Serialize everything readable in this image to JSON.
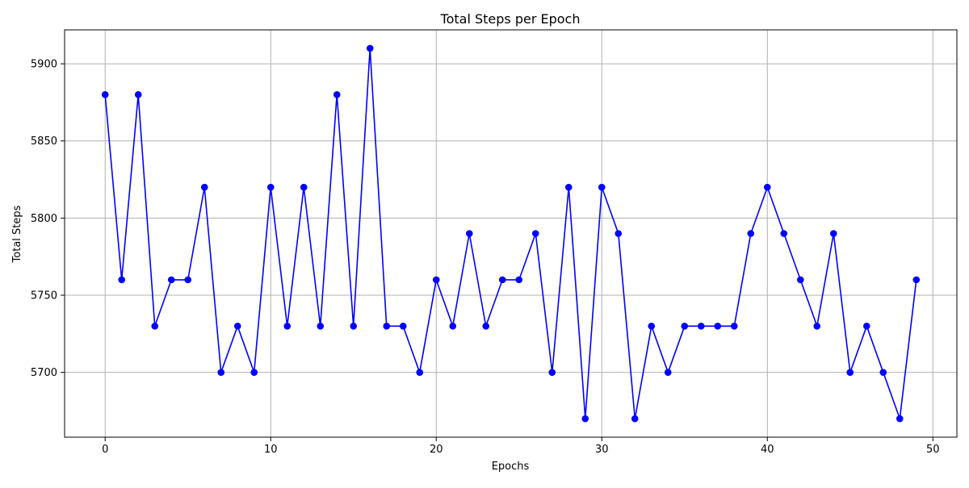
{
  "chart_data": {
    "type": "line",
    "title": "Total Steps per Epoch",
    "xlabel": "Epochs",
    "ylabel": "Total Steps",
    "xlim": [
      -2.45,
      51.45
    ],
    "ylim": [
      5658,
      5922
    ],
    "xticks": [
      0,
      10,
      20,
      30,
      40,
      50
    ],
    "yticks": [
      5700,
      5750,
      5800,
      5850,
      5900
    ],
    "grid": true,
    "legend": "none",
    "series": [
      {
        "color": "#0000ff",
        "marker": "circle",
        "x": [
          0,
          1,
          2,
          3,
          4,
          5,
          6,
          7,
          8,
          9,
          10,
          11,
          12,
          13,
          14,
          15,
          16,
          17,
          18,
          19,
          20,
          21,
          22,
          23,
          24,
          25,
          26,
          27,
          28,
          29,
          30,
          31,
          32,
          33,
          34,
          35,
          36,
          37,
          38,
          39,
          40,
          41,
          42,
          43,
          44,
          45,
          46,
          47,
          48,
          49
        ],
        "values": [
          5880,
          5760,
          5880,
          5730,
          5760,
          5760,
          5820,
          5700,
          5730,
          5700,
          5820,
          5730,
          5820,
          5730,
          5880,
          5730,
          5910,
          5730,
          5730,
          5700,
          5760,
          5730,
          5790,
          5730,
          5760,
          5760,
          5790,
          5700,
          5820,
          5670,
          5820,
          5790,
          5670,
          5730,
          5700,
          5730,
          5730,
          5730,
          5730,
          5790,
          5820,
          5790,
          5760,
          5730,
          5790,
          5700,
          5730,
          5700,
          5670,
          5760
        ]
      }
    ]
  }
}
